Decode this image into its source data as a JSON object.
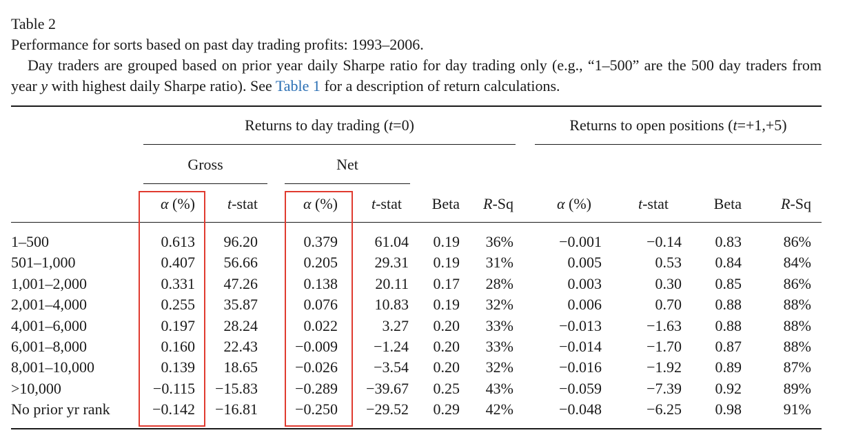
{
  "caption": {
    "title": "Table 2",
    "subtitle": "Performance for sorts based on past day trading profits: 1993–2006.",
    "desc_before_link": "Day traders are grouped based on prior year daily Sharpe ratio for day trading only (e.g., “1–500” are the 500 day traders from year ",
    "desc_var": "y",
    "desc_mid": " with highest daily Sharpe ratio). See ",
    "desc_link": "Table 1",
    "desc_after_link": " for a description of return calculations."
  },
  "headers": {
    "group_day_trading": "Returns to day trading (t=0)",
    "group_open_positions": "Returns to open positions (t=+1,+5)",
    "gross": "Gross",
    "net": "Net",
    "columns": [
      "α (%)",
      "t-stat",
      "α (%)",
      "t-stat",
      "Beta",
      "R-Sq",
      "α (%)",
      "t-stat",
      "Beta",
      "R-Sq"
    ]
  },
  "rows": [
    {
      "label": "1–500",
      "values": [
        "0.613",
        "96.20",
        "0.379",
        "61.04",
        "0.19",
        "36%",
        "−0.001",
        "−0.14",
        "0.83",
        "86%"
      ]
    },
    {
      "label": "501–1,000",
      "values": [
        "0.407",
        "56.66",
        "0.205",
        "29.31",
        "0.19",
        "31%",
        "0.005",
        "0.53",
        "0.84",
        "84%"
      ]
    },
    {
      "label": "1,001–2,000",
      "values": [
        "0.331",
        "47.26",
        "0.138",
        "20.11",
        "0.17",
        "28%",
        "0.003",
        "0.30",
        "0.85",
        "86%"
      ]
    },
    {
      "label": "2,001–4,000",
      "values": [
        "0.255",
        "35.87",
        "0.076",
        "10.83",
        "0.19",
        "32%",
        "0.006",
        "0.70",
        "0.88",
        "88%"
      ]
    },
    {
      "label": "4,001–6,000",
      "values": [
        "0.197",
        "28.24",
        "0.022",
        "3.27",
        "0.20",
        "33%",
        "−0.013",
        "−1.63",
        "0.88",
        "88%"
      ]
    },
    {
      "label": "6,001–8,000",
      "values": [
        "0.160",
        "22.43",
        "−0.009",
        "−1.24",
        "0.20",
        "33%",
        "−0.014",
        "−1.70",
        "0.87",
        "88%"
      ]
    },
    {
      "label": "8,001–10,000",
      "values": [
        "0.139",
        "18.65",
        "−0.026",
        "−3.54",
        "0.20",
        "32%",
        "−0.016",
        "−1.92",
        "0.89",
        "87%"
      ]
    },
    {
      "label": ">10,000",
      "values": [
        "−0.115",
        "−15.83",
        "−0.289",
        "−39.67",
        "0.25",
        "43%",
        "−0.059",
        "−7.39",
        "0.92",
        "89%"
      ]
    },
    {
      "label": "No prior yr rank",
      "values": [
        "−0.142",
        "−16.81",
        "−0.250",
        "−29.52",
        "0.29",
        "42%",
        "−0.048",
        "−6.25",
        "0.98",
        "91%"
      ]
    }
  ],
  "highlight_color": "#e03a2f"
}
